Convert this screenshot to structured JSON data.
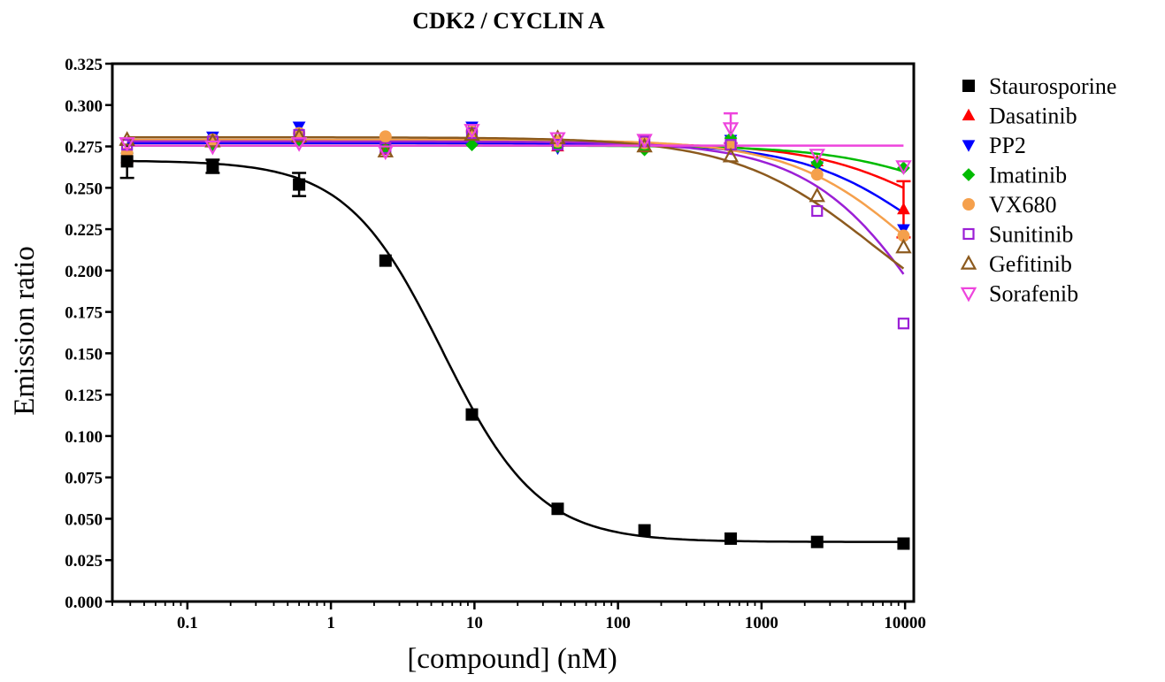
{
  "chart_data": {
    "type": "scatter",
    "title": "CDK2 / CYCLIN A",
    "xlabel": "[compound] (nM)",
    "ylabel": "Emission ratio",
    "x_scale": "log",
    "xlim": [
      0.03,
      11500
    ],
    "ylim": [
      0,
      0.325
    ],
    "x_ticks": [
      0.1,
      1,
      10,
      100,
      1000,
      10000
    ],
    "x_tick_labels": [
      "0.1",
      "1",
      "10",
      "100",
      "1000",
      "10000"
    ],
    "y_ticks": [
      0,
      0.025,
      0.05,
      0.075,
      0.1,
      0.125,
      0.15,
      0.175,
      0.2,
      0.225,
      0.25,
      0.275,
      0.3,
      0.325
    ],
    "y_tick_labels": [
      "0.000",
      "0.025",
      "0.050",
      "0.075",
      "0.100",
      "0.125",
      "0.150",
      "0.175",
      "0.200",
      "0.225",
      "0.250",
      "0.275",
      "0.300",
      "0.325"
    ],
    "legend_position": "right",
    "grid": false,
    "x": [
      0.038,
      0.15,
      0.6,
      2.4,
      9.6,
      38,
      153,
      610,
      2440,
      9760
    ],
    "series": [
      {
        "name": "Staurosporine",
        "color": "#000000",
        "marker": "square-filled",
        "values": [
          0.266,
          0.263,
          0.252,
          0.206,
          0.113,
          0.056,
          0.043,
          0.038,
          0.036,
          0.035
        ],
        "errors": [
          0.01,
          0.004,
          0.007,
          0,
          0,
          0,
          0,
          0,
          0,
          0
        ],
        "fit": {
          "top": 0.2665,
          "bottom": 0.036,
          "ic50": 6.0,
          "hill": 1.3
        }
      },
      {
        "name": "Dasatinib",
        "color": "#ff0000",
        "marker": "triangle-up-filled",
        "values": [
          0.268,
          0.279,
          0.28,
          0.273,
          0.283,
          0.275,
          0.275,
          0.276,
          0.266,
          0.237
        ],
        "errors": [
          0,
          0,
          0,
          0,
          0,
          0,
          0,
          0,
          0,
          0.017
        ],
        "fit": {
          "top": 0.277,
          "bottom": 0.2,
          "ic50": 18000,
          "hill": 1.0
        }
      },
      {
        "name": "PP2",
        "color": "#0000ff",
        "marker": "triangle-down-filled",
        "values": [
          0.268,
          0.281,
          0.287,
          0.274,
          0.287,
          0.274,
          0.278,
          0.279,
          0.263,
          0.225
        ],
        "errors": [
          0,
          0,
          0,
          0,
          0,
          0,
          0,
          0,
          0,
          0
        ],
        "fit": {
          "top": 0.277,
          "bottom": 0.17,
          "ic50": 15000,
          "hill": 1.0
        }
      },
      {
        "name": "Imatinib",
        "color": "#00bb00",
        "marker": "diamond-filled",
        "values": [
          0.271,
          0.276,
          0.279,
          0.274,
          0.276,
          0.275,
          0.273,
          0.28,
          0.265,
          0.262
        ],
        "errors": [
          0,
          0,
          0,
          0,
          0,
          0,
          0,
          0,
          0,
          0
        ],
        "fit": {
          "top": 0.2755,
          "bottom": 0.22,
          "ic50": 25000,
          "hill": 1.0
        }
      },
      {
        "name": "VX680",
        "color": "#f5a04c",
        "marker": "circle-filled",
        "values": [
          0.271,
          0.279,
          0.283,
          0.281,
          0.284,
          0.278,
          0.277,
          0.275,
          0.258,
          0.221
        ],
        "errors": [
          0,
          0,
          0,
          0,
          0,
          0,
          0,
          0,
          0,
          0
        ],
        "fit": {
          "top": 0.279,
          "bottom": 0.15,
          "ic50": 12000,
          "hill": 1.0
        }
      },
      {
        "name": "Sunitinib",
        "color": "#9b1fd6",
        "marker": "square-open",
        "values": [
          0.276,
          0.278,
          0.282,
          0.274,
          0.283,
          0.276,
          0.278,
          0.276,
          0.236,
          0.168
        ],
        "errors": [
          0,
          0,
          0,
          0,
          0,
          0,
          0,
          0,
          0,
          0
        ],
        "fit": {
          "top": 0.278,
          "bottom": 0.05,
          "ic50": 18000,
          "hill": 1.0
        }
      },
      {
        "name": "Gefitinib",
        "color": "#8c5a1e",
        "marker": "triangle-up-open",
        "values": [
          0.279,
          0.278,
          0.281,
          0.272,
          0.282,
          0.28,
          0.275,
          0.269,
          0.245,
          0.214
        ],
        "errors": [
          0,
          0,
          0,
          0,
          0,
          0,
          0,
          0,
          0,
          0
        ],
        "fit": {
          "top": 0.2805,
          "bottom": 0.15,
          "ic50": 6000,
          "hill": 0.9
        }
      },
      {
        "name": "Sorafenib",
        "color": "#ee44dd",
        "marker": "triangle-down-open",
        "values": [
          0.277,
          0.275,
          0.277,
          0.272,
          0.285,
          0.28,
          0.279,
          0.286,
          0.27,
          0.263
        ],
        "errors": [
          0,
          0,
          0,
          0,
          0,
          0,
          0,
          0.009,
          0,
          0
        ],
        "fit": {
          "top": 0.2755,
          "bottom": 0.2755,
          "ic50": 10000,
          "hill": 1.0
        }
      }
    ]
  }
}
